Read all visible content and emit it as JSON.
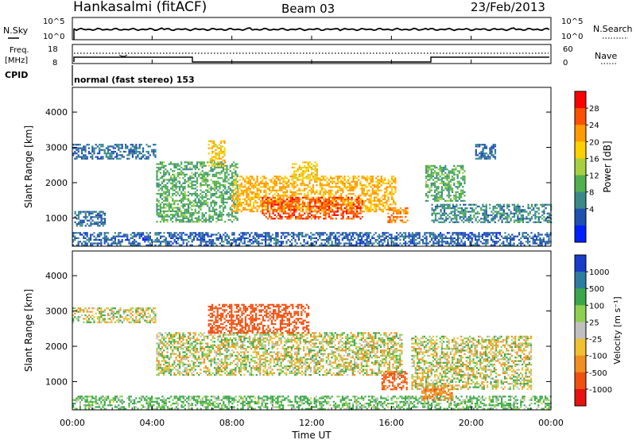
{
  "header": {
    "station": "Hankasalmi (fitACF)",
    "beam": "Beam 03",
    "date": "23/Feb/2013"
  },
  "noise_panel": {
    "left_label": "N.Sky",
    "right_label": "N.Search",
    "ticks": [
      "10^5",
      "10^0"
    ]
  },
  "freq_panel": {
    "left_label_1": "Freq.",
    "left_label_2": "[MHz]",
    "left_ticks": [
      "18",
      "8"
    ],
    "right_label": "Nave",
    "right_ticks": [
      "60",
      "0"
    ]
  },
  "cpid": {
    "label": "CPID",
    "mode_text": "normal (fast stereo) 153"
  },
  "x_axis": {
    "title": "Time UT",
    "ticks": [
      "00:00",
      "04:00",
      "08:00",
      "12:00",
      "16:00",
      "20:00",
      "00:00"
    ]
  },
  "power_panel": {
    "ylabel": "Slant Range [km]",
    "yticks": [
      "4000",
      "3000",
      "2000",
      "1000"
    ],
    "colorbar_label": "Power [dB]",
    "colorbar_ticks": [
      "28",
      "24",
      "20",
      "16",
      "12",
      "8",
      "4"
    ],
    "colorbar_colors": [
      "#ff0000",
      "#ff5000",
      "#ff9a00",
      "#ffd000",
      "#a6d040",
      "#50b050",
      "#3a8a8a",
      "#2050b0",
      "#0020ff"
    ]
  },
  "velocity_panel": {
    "ylabel": "Slant Range [km]",
    "yticks": [
      "4000",
      "3000",
      "2000",
      "1000"
    ],
    "colorbar_label": "Velocity [m s⁻¹]",
    "colorbar_ticks": [
      "1000",
      "500",
      "100",
      "25",
      "-25",
      "-100",
      "-500",
      "-1000"
    ],
    "colorbar_colors": [
      "#1a3cc8",
      "#2e7da0",
      "#3aa84a",
      "#8ed050",
      "#c0c0c0",
      "#f0c030",
      "#f09020",
      "#f05010",
      "#e81010"
    ]
  },
  "chart_data": [
    {
      "type": "heatmap",
      "title": "Power [dB]",
      "xlabel": "Time UT",
      "ylabel": "Slant Range [km]",
      "xlim": [
        0,
        24
      ],
      "ylim": [
        200,
        4700
      ],
      "colorbar_range": [
        0,
        32
      ],
      "echo_regions": [
        {
          "t0": 0.0,
          "t1": 24.0,
          "r0": 250,
          "r1": 600,
          "value": 6
        },
        {
          "t0": 0.1,
          "t1": 1.6,
          "r0": 800,
          "r1": 1200,
          "value": 7
        },
        {
          "t0": 0.0,
          "t1": 4.2,
          "r0": 2700,
          "r1": 3100,
          "value": 7
        },
        {
          "t0": 4.2,
          "t1": 8.3,
          "r0": 900,
          "r1": 2600,
          "value": 12
        },
        {
          "t0": 6.8,
          "t1": 7.6,
          "r0": 2500,
          "r1": 3200,
          "value": 20
        },
        {
          "t0": 8.0,
          "t1": 16.2,
          "r0": 1200,
          "r1": 2200,
          "value": 22
        },
        {
          "t0": 9.5,
          "t1": 14.5,
          "r0": 1000,
          "r1": 1600,
          "value": 27
        },
        {
          "t0": 11.0,
          "t1": 12.3,
          "r0": 2100,
          "r1": 2600,
          "value": 20
        },
        {
          "t0": 15.8,
          "t1": 16.8,
          "r0": 900,
          "r1": 1300,
          "value": 24
        },
        {
          "t0": 17.7,
          "t1": 19.7,
          "r0": 1500,
          "r1": 2500,
          "value": 12
        },
        {
          "t0": 20.2,
          "t1": 21.2,
          "r0": 2700,
          "r1": 3100,
          "value": 7
        },
        {
          "t0": 18.0,
          "t1": 24.0,
          "r0": 900,
          "r1": 1400,
          "value": 9
        }
      ]
    },
    {
      "type": "heatmap",
      "title": "Velocity [m s⁻¹]",
      "xlabel": "Time UT",
      "ylabel": "Slant Range [km]",
      "xlim": [
        0,
        24
      ],
      "ylim": [
        200,
        4700
      ],
      "colorbar_range": [
        -1000,
        1000
      ],
      "echo_regions": [
        {
          "t0": 0.0,
          "t1": 24.0,
          "r0": 250,
          "r1": 600,
          "value": 150
        },
        {
          "t0": 0.0,
          "t1": 4.2,
          "r0": 2700,
          "r1": 3100,
          "value": 0
        },
        {
          "t0": 4.2,
          "t1": 16.5,
          "r0": 1200,
          "r1": 2400,
          "value": 0
        },
        {
          "t0": 6.8,
          "t1": 11.8,
          "r0": 2400,
          "r1": 3200,
          "value": -700
        },
        {
          "t0": 15.5,
          "t1": 16.8,
          "r0": 800,
          "r1": 1300,
          "value": -600
        },
        {
          "t0": 17.0,
          "t1": 23.0,
          "r0": 800,
          "r1": 2300,
          "value": 0
        },
        {
          "t0": 17.5,
          "t1": 19.0,
          "r0": 500,
          "r1": 900,
          "value": -400
        }
      ]
    }
  ]
}
